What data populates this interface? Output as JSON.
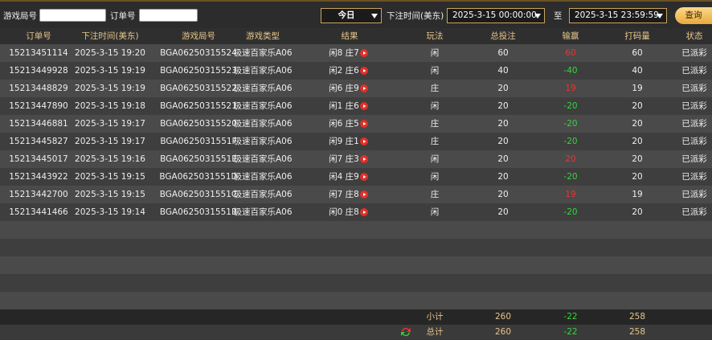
{
  "filters": {
    "round_label": "游戏局号",
    "order_label": "订单号",
    "period": "今日",
    "time_label": "下注时间(美东)",
    "start": "2025-3-15 00:00:00",
    "to": "至",
    "end": "2025-3-15 23:59:59",
    "search": "查询"
  },
  "table": {
    "columns": [
      "订单号",
      "下注时间(美东)",
      "游戏局号",
      "游戏类型",
      "结果",
      "玩法",
      "总投注",
      "输赢",
      "打码量",
      "状态"
    ],
    "rows": [
      [
        "15213451114",
        "2025-3-15 19:20",
        "BGA06250315524",
        "极速百家乐A06",
        "闲8 庄7",
        "闲",
        "60",
        "60",
        "60",
        "已派彩"
      ],
      [
        "15213449928",
        "2025-3-15 19:19",
        "BGA06250315523",
        "极速百家乐A06",
        "闲2 庄6",
        "闲",
        "40",
        "-40",
        "40",
        "已派彩"
      ],
      [
        "15213448829",
        "2025-3-15 19:19",
        "BGA06250315522",
        "极速百家乐A06",
        "闲6 庄9",
        "庄",
        "20",
        "19",
        "19",
        "已派彩"
      ],
      [
        "15213447890",
        "2025-3-15 19:18",
        "BGA06250315521",
        "极速百家乐A06",
        "闲1 庄6",
        "闲",
        "20",
        "-20",
        "20",
        "已派彩"
      ],
      [
        "15213446881",
        "2025-3-15 19:17",
        "BGA06250315520",
        "极速百家乐A06",
        "闲6 庄5",
        "庄",
        "20",
        "-20",
        "20",
        "已派彩"
      ],
      [
        "15213445827",
        "2025-3-15 19:17",
        "BGA0625031551F",
        "极速百家乐A06",
        "闲9 庄1",
        "庄",
        "20",
        "-20",
        "20",
        "已派彩"
      ],
      [
        "15213445017",
        "2025-3-15 19:16",
        "BGA0625031551E",
        "极速百家乐A06",
        "闲7 庄3",
        "闲",
        "20",
        "20",
        "20",
        "已派彩"
      ],
      [
        "15213443922",
        "2025-3-15 19:15",
        "BGA0625031551D",
        "极速百家乐A06",
        "闲4 庄9",
        "闲",
        "20",
        "-20",
        "20",
        "已派彩"
      ],
      [
        "15213442700",
        "2025-3-15 19:15",
        "BGA0625031551C",
        "极速百家乐A06",
        "闲7 庄8",
        "庄",
        "20",
        "19",
        "19",
        "已派彩"
      ],
      [
        "15213441466",
        "2025-3-15 19:14",
        "BGA0625031551B",
        "极速百家乐A06",
        "闲0 庄8",
        "闲",
        "20",
        "-20",
        "20",
        "已派彩"
      ]
    ],
    "subtotal": {
      "label": "小计",
      "total_bet": "260",
      "win_loss": "-22",
      "turnover": "258"
    },
    "total": {
      "label": "总计",
      "total_bet": "260",
      "win_loss": "-22",
      "turnover": "258"
    }
  }
}
